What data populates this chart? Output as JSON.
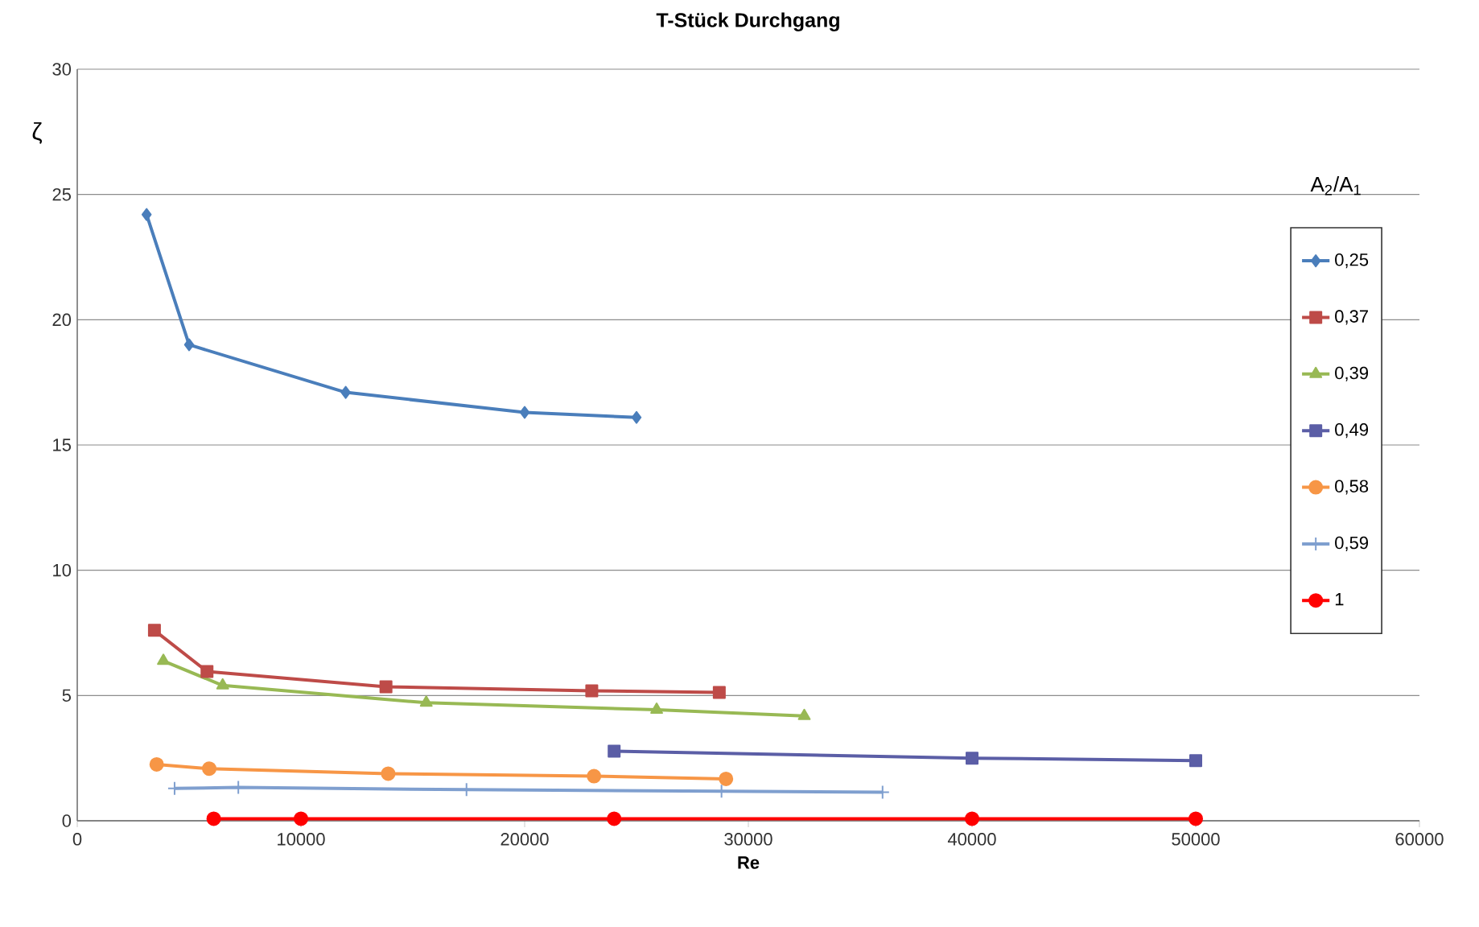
{
  "chart_data": {
    "type": "line",
    "title": "T-Stück Durchgang",
    "xlabel": "Re",
    "ylabel": "ζ",
    "legend_title": "A$_{2}$/A$_{1}$",
    "xlim": [
      0,
      60000
    ],
    "xticks": [
      0,
      10000,
      20000,
      30000,
      40000,
      50000,
      60000
    ],
    "ylim": [
      0,
      30
    ],
    "yticks": [
      0,
      5,
      10,
      15,
      20,
      25,
      30
    ],
    "grid": "y",
    "legend": "right",
    "line_style": "solid",
    "series": [
      {
        "name": "0,25",
        "color": "#4a7ebb",
        "marker": "diamond",
        "x": [
          3100,
          5000,
          12000,
          20000,
          25000
        ],
        "values": [
          24.2,
          19.0,
          17.1,
          16.3,
          16.1
        ]
      },
      {
        "name": "0,37",
        "color": "#be4b48",
        "marker": "square",
        "x": [
          3450,
          5800,
          13800,
          23000,
          28700
        ],
        "values": [
          7.6,
          5.96,
          5.35,
          5.19,
          5.12
        ]
      },
      {
        "name": "0,39",
        "color": "#98b954",
        "marker": "triangle",
        "x": [
          3850,
          6500,
          15600,
          25900,
          32500
        ],
        "values": [
          6.38,
          5.4,
          4.71,
          4.43,
          4.18
        ]
      },
      {
        "name": "0,49",
        "color": "#5b5ea6",
        "marker": "square",
        "x": [
          24000,
          40000,
          50000
        ],
        "values": [
          2.78,
          2.5,
          2.4
        ]
      },
      {
        "name": "0,58",
        "color": "#f79646",
        "marker": "circle",
        "x": [
          3550,
          5900,
          13900,
          23100,
          29000
        ],
        "values": [
          2.25,
          2.08,
          1.88,
          1.78,
          1.67
        ]
      },
      {
        "name": "0,59",
        "color": "#7f9fcf",
        "marker": "cross",
        "x": [
          4350,
          7200,
          17400,
          28800,
          36000
        ],
        "values": [
          1.29,
          1.33,
          1.24,
          1.18,
          1.14
        ]
      },
      {
        "name": "1",
        "color": "#ff0000",
        "marker": "circle",
        "x": [
          6100,
          10000,
          24000,
          40000,
          50000
        ],
        "values": [
          0.08,
          0.08,
          0.08,
          0.08,
          0.08
        ]
      }
    ]
  }
}
